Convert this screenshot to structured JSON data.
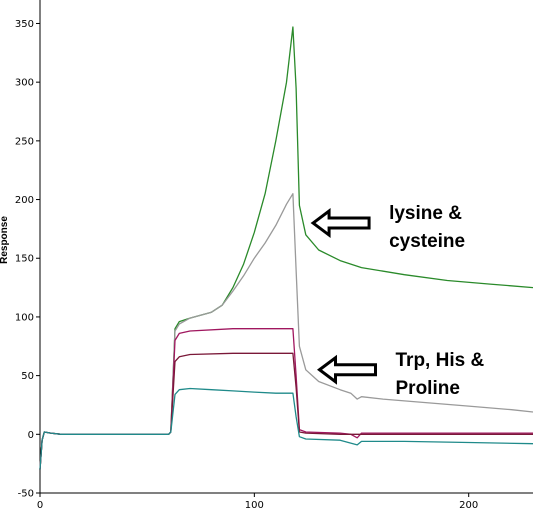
{
  "chart_data": {
    "type": "line",
    "title": "",
    "xlabel": "",
    "ylabel": "Response",
    "xlim": [
      0,
      230
    ],
    "ylim": [
      -50,
      370
    ],
    "x_ticks": [
      0,
      100,
      200
    ],
    "y_ticks": [
      -50,
      0,
      50,
      100,
      150,
      200,
      250,
      300,
      350
    ],
    "grid": false,
    "legend": "none",
    "series": [
      {
        "color": "#2a8a2a",
        "points": [
          [
            0,
            -30
          ],
          [
            1,
            -5
          ],
          [
            2,
            2
          ],
          [
            5,
            1
          ],
          [
            10,
            0
          ],
          [
            30,
            0
          ],
          [
            50,
            0
          ],
          [
            60,
            0
          ],
          [
            61,
            2
          ],
          [
            63,
            90
          ],
          [
            65,
            96
          ],
          [
            70,
            99
          ],
          [
            80,
            104
          ],
          [
            85,
            110
          ],
          [
            90,
            125
          ],
          [
            95,
            145
          ],
          [
            100,
            172
          ],
          [
            105,
            205
          ],
          [
            110,
            250
          ],
          [
            115,
            300
          ],
          [
            118,
            347
          ],
          [
            119.5,
            295
          ],
          [
            121,
            195
          ],
          [
            124,
            170
          ],
          [
            130,
            157
          ],
          [
            140,
            148
          ],
          [
            150,
            142
          ],
          [
            170,
            136
          ],
          [
            190,
            131
          ],
          [
            210,
            128
          ],
          [
            230,
            125
          ]
        ]
      },
      {
        "color": "#9a9a9a",
        "points": [
          [
            0,
            -30
          ],
          [
            1,
            -5
          ],
          [
            2,
            2
          ],
          [
            5,
            1
          ],
          [
            10,
            0
          ],
          [
            30,
            0
          ],
          [
            50,
            0
          ],
          [
            60,
            0
          ],
          [
            61,
            2
          ],
          [
            63,
            88
          ],
          [
            65,
            94
          ],
          [
            70,
            99
          ],
          [
            80,
            104
          ],
          [
            85,
            110
          ],
          [
            90,
            122
          ],
          [
            95,
            135
          ],
          [
            100,
            150
          ],
          [
            105,
            163
          ],
          [
            110,
            178
          ],
          [
            115,
            196
          ],
          [
            118,
            205
          ],
          [
            119.5,
            140
          ],
          [
            121,
            75
          ],
          [
            124,
            55
          ],
          [
            130,
            45
          ],
          [
            140,
            38
          ],
          [
            145,
            35
          ],
          [
            148,
            30
          ],
          [
            150,
            32
          ],
          [
            160,
            30
          ],
          [
            180,
            27
          ],
          [
            200,
            24
          ],
          [
            220,
            21
          ],
          [
            230,
            19
          ]
        ]
      },
      {
        "color": "#a0175f",
        "points": [
          [
            0,
            -30
          ],
          [
            1,
            -5
          ],
          [
            2,
            2
          ],
          [
            5,
            1
          ],
          [
            10,
            0
          ],
          [
            30,
            0
          ],
          [
            50,
            0
          ],
          [
            60,
            0
          ],
          [
            61,
            2
          ],
          [
            63,
            80
          ],
          [
            65,
            86
          ],
          [
            70,
            88
          ],
          [
            90,
            90
          ],
          [
            110,
            90
          ],
          [
            118,
            90
          ],
          [
            119.5,
            50
          ],
          [
            121,
            4
          ],
          [
            124,
            2
          ],
          [
            140,
            1
          ],
          [
            145,
            0
          ],
          [
            148,
            -3
          ],
          [
            150,
            1
          ],
          [
            170,
            1
          ],
          [
            200,
            1
          ],
          [
            230,
            1
          ]
        ]
      },
      {
        "color": "#7a1838",
        "points": [
          [
            0,
            -30
          ],
          [
            1,
            -5
          ],
          [
            2,
            2
          ],
          [
            5,
            1
          ],
          [
            10,
            0
          ],
          [
            30,
            0
          ],
          [
            50,
            0
          ],
          [
            60,
            0
          ],
          [
            61,
            2
          ],
          [
            63,
            62
          ],
          [
            65,
            66
          ],
          [
            70,
            68
          ],
          [
            90,
            69
          ],
          [
            110,
            69
          ],
          [
            118,
            69
          ],
          [
            119.5,
            40
          ],
          [
            121,
            2
          ],
          [
            124,
            1
          ],
          [
            140,
            0
          ],
          [
            150,
            0
          ],
          [
            200,
            0
          ],
          [
            230,
            0
          ]
        ]
      },
      {
        "color": "#1f8a8a",
        "points": [
          [
            0,
            -30
          ],
          [
            1,
            -5
          ],
          [
            2,
            2
          ],
          [
            5,
            1
          ],
          [
            10,
            0
          ],
          [
            30,
            0
          ],
          [
            50,
            0
          ],
          [
            60,
            0
          ],
          [
            61,
            2
          ],
          [
            63,
            34
          ],
          [
            65,
            38
          ],
          [
            70,
            39
          ],
          [
            80,
            38
          ],
          [
            90,
            37
          ],
          [
            100,
            36
          ],
          [
            110,
            35
          ],
          [
            118,
            35
          ],
          [
            119.5,
            15
          ],
          [
            121,
            -2
          ],
          [
            124,
            -4
          ],
          [
            140,
            -5
          ],
          [
            148,
            -9
          ],
          [
            150,
            -6
          ],
          [
            170,
            -6
          ],
          [
            200,
            -7
          ],
          [
            230,
            -8
          ]
        ]
      }
    ],
    "annotations": [
      {
        "lines": [
          "lysine &",
          "cysteine"
        ],
        "arrow_x": 119,
        "arrow_y": 180
      },
      {
        "lines": [
          "Trp, His &",
          "Proline"
        ],
        "arrow_x": 122,
        "arrow_y": 55
      }
    ]
  }
}
